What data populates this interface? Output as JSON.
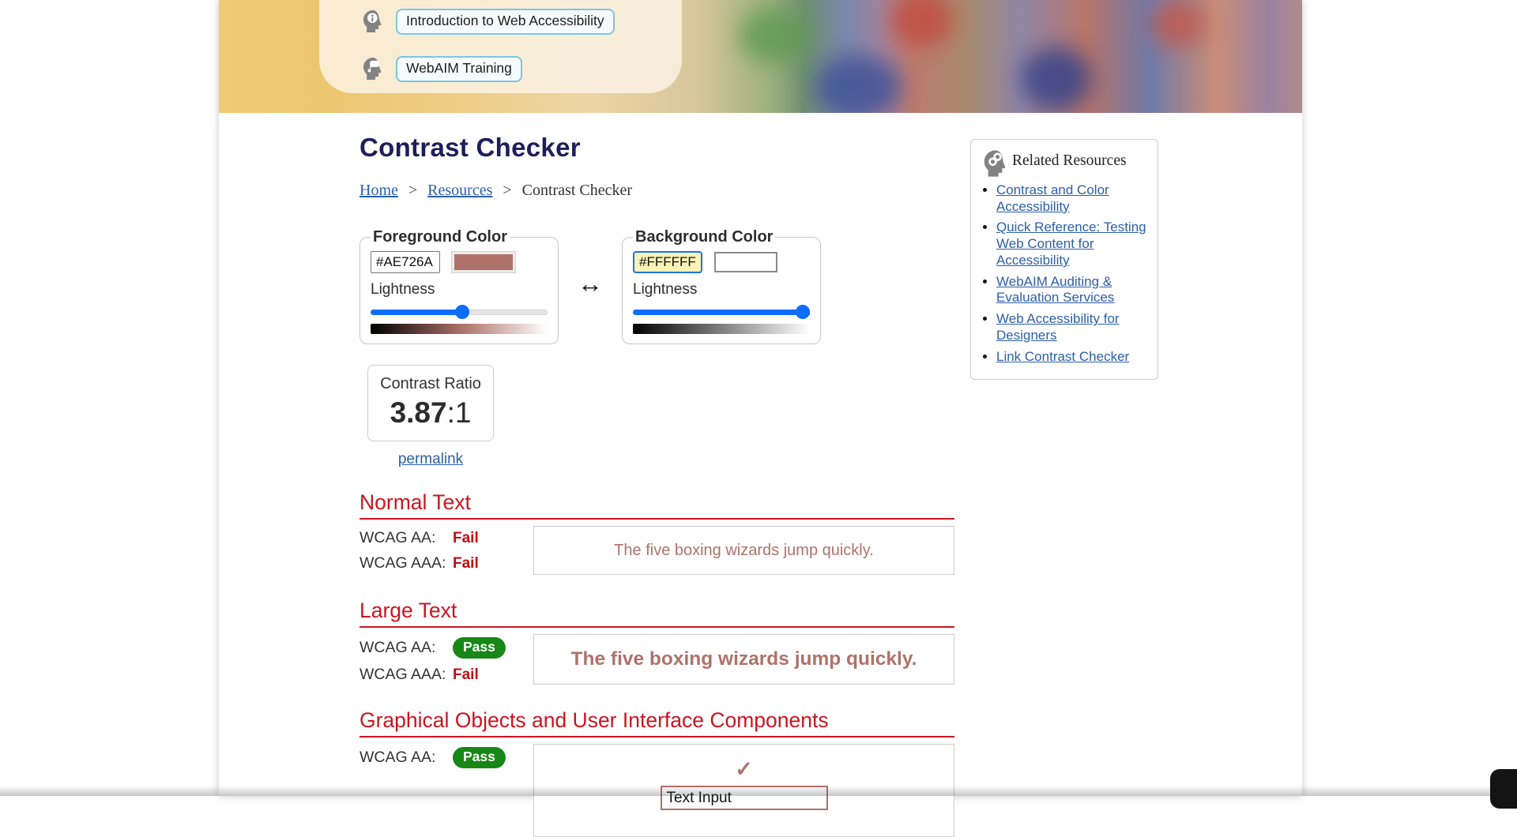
{
  "banner": {
    "intro_button": "Introduction to Web Accessibility",
    "training_button": "WebAIM Training"
  },
  "header": {
    "title": "Contrast Checker",
    "breadcrumb": {
      "home": "Home",
      "resources": "Resources",
      "current": "Contrast Checker",
      "separator": ">"
    }
  },
  "pickers": {
    "swap_arrow": "↔",
    "foreground": {
      "legend": "Foreground Color",
      "hex": "#AE726A",
      "lightness_label": "Lightness",
      "slider_percent": 52
    },
    "background": {
      "legend": "Background Color",
      "hex": "#FFFFFF",
      "lightness_label": "Lightness",
      "slider_percent": 100
    }
  },
  "ratio": {
    "label": "Contrast Ratio",
    "value": "3.87",
    "suffix": ":1",
    "permalink": "permalink"
  },
  "related": {
    "title": "Related Resources",
    "icon": "link-head-icon",
    "links": [
      "Contrast and Color Accessibility",
      "Quick Reference: Testing Web Content for Accessibility",
      "WebAIM Auditing & Evaluation Services",
      "Web Accessibility for Designers",
      "Link Contrast Checker"
    ]
  },
  "sections": {
    "normal": {
      "title": "Normal Text",
      "rows": [
        {
          "label": "WCAG AA:",
          "result": "Fail"
        },
        {
          "label": "WCAG AAA:",
          "result": "Fail"
        }
      ],
      "sample_text": "The five boxing wizards jump quickly."
    },
    "large": {
      "title": "Large Text",
      "rows": [
        {
          "label": "WCAG AA:",
          "result": "Pass"
        },
        {
          "label": "WCAG AAA:",
          "result": "Fail"
        }
      ],
      "sample_text": "The five boxing wizards jump quickly."
    },
    "graphical": {
      "title": "Graphical Objects and User Interface Components",
      "rows": [
        {
          "label": "WCAG AA:",
          "result": "Pass"
        }
      ],
      "checkmark": "✓",
      "input_text": "Text Input"
    }
  },
  "colors": {
    "foreground": "#AE726A",
    "background": "#FFFFFF",
    "accent_red": "#cb1520",
    "fail_red": "#c00d14",
    "pass_green": "#178717",
    "link_blue": "#2b5fa8",
    "title_navy": "#1e1e5a",
    "slider_blue": "#0d6efd",
    "focused_input_highlight": "#fbf3b6"
  }
}
